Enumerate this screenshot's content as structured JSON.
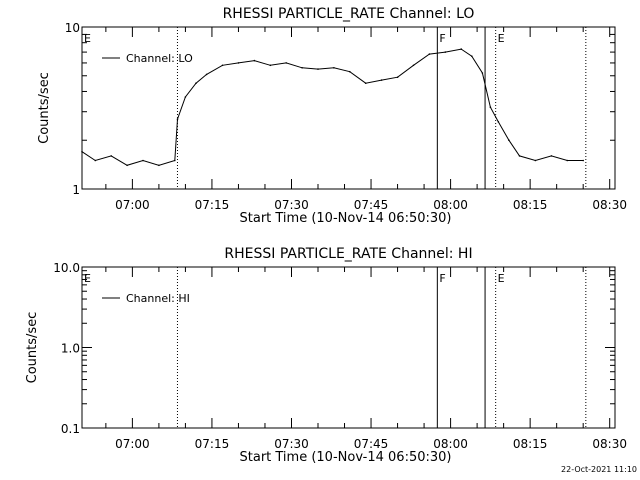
{
  "footer_timestamp": "22-Oct-2021 11:10",
  "chart_data": [
    {
      "type": "line",
      "title": "RHESSI PARTICLE_RATE Channel: LO",
      "xlabel": "Start Time (10-Nov-14 06:50:30)",
      "ylabel": "Counts/sec",
      "yscale": "log",
      "ylim": [
        1,
        10
      ],
      "y_ticks": [
        "1",
        "10"
      ],
      "xlim": [
        "06:50:30",
        "08:31:00"
      ],
      "x_ticks": [
        "07:00",
        "07:15",
        "07:30",
        "07:45",
        "08:00",
        "08:15",
        "08:30"
      ],
      "legend": "top-left",
      "series": [
        {
          "name": "Channel: LO",
          "x": [
            "06:50:30",
            "06:53:00",
            "06:56:00",
            "06:59:00",
            "07:02:00",
            "07:05:00",
            "07:08:00",
            "07:08:30",
            "07:10:00",
            "07:12:00",
            "07:14:00",
            "07:17:00",
            "07:20:00",
            "07:23:00",
            "07:26:00",
            "07:29:00",
            "07:32:00",
            "07:35:00",
            "07:38:00",
            "07:41:00",
            "07:44:00",
            "07:47:00",
            "07:50:00",
            "07:53:00",
            "07:56:00",
            "07:59:00",
            "08:02:00",
            "08:04:00",
            "08:06:00",
            "08:07:30",
            "08:09:00",
            "08:11:00",
            "08:13:00",
            "08:16:00",
            "08:19:00",
            "08:22:00",
            "08:25:00"
          ],
          "y": [
            1.7,
            1.5,
            1.6,
            1.4,
            1.5,
            1.4,
            1.5,
            2.7,
            3.7,
            4.5,
            5.1,
            5.8,
            6.0,
            6.2,
            5.8,
            6.0,
            5.6,
            5.5,
            5.6,
            5.3,
            4.5,
            4.7,
            4.9,
            5.8,
            6.8,
            7.0,
            7.3,
            6.6,
            5.2,
            3.2,
            2.6,
            2.0,
            1.6,
            1.5,
            1.6,
            1.5,
            1.5
          ]
        }
      ],
      "markers": [
        {
          "label": "E",
          "time": "06:50:30",
          "style": "none"
        },
        {
          "label": "",
          "time": "07:08:30",
          "style": "dotted"
        },
        {
          "label": "F",
          "time": "07:57:30",
          "style": "solid"
        },
        {
          "label": "",
          "time": "08:06:30",
          "style": "solid"
        },
        {
          "label": "E",
          "time": "08:08:30",
          "style": "dotted"
        },
        {
          "label": "",
          "time": "08:25:30",
          "style": "dotted"
        }
      ]
    },
    {
      "type": "line",
      "title": "RHESSI PARTICLE_RATE Channel: HI",
      "xlabel": "Start Time (10-Nov-14 06:50:30)",
      "ylabel": "Counts/sec",
      "yscale": "log",
      "ylim": [
        0.1,
        10
      ],
      "y_ticks": [
        "0.1",
        "1.0",
        "10.0"
      ],
      "xlim": [
        "06:50:30",
        "08:31:00"
      ],
      "x_ticks": [
        "07:00",
        "07:15",
        "07:30",
        "07:45",
        "08:00",
        "08:15",
        "08:30"
      ],
      "legend": "top-left",
      "series": [
        {
          "name": "Channel: HI",
          "x": [],
          "y": []
        }
      ],
      "markers": [
        {
          "label": "E",
          "time": "06:50:30",
          "style": "none"
        },
        {
          "label": "",
          "time": "07:08:30",
          "style": "dotted"
        },
        {
          "label": "F",
          "time": "07:57:30",
          "style": "solid"
        },
        {
          "label": "",
          "time": "08:06:30",
          "style": "solid"
        },
        {
          "label": "E",
          "time": "08:08:30",
          "style": "dotted"
        },
        {
          "label": "",
          "time": "08:25:30",
          "style": "dotted"
        }
      ]
    }
  ]
}
